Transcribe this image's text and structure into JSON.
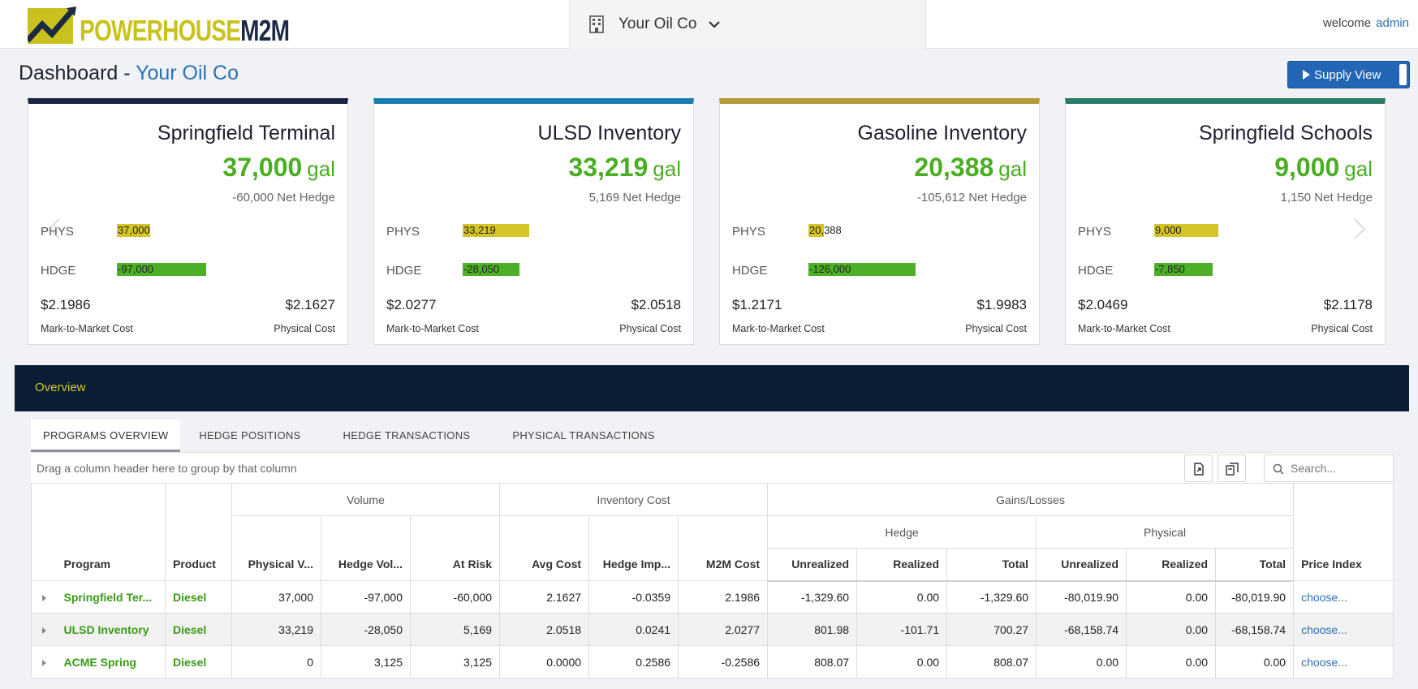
{
  "header": {
    "logo_part1": "POWERHOUSE",
    "logo_part2": "M2M",
    "company": "Your Oil Co",
    "welcome": "welcome",
    "user": "admin"
  },
  "dashboard": {
    "title": "Dashboard",
    "separator": " - ",
    "company": "Your Oil Co",
    "supply_view_label": "Supply View"
  },
  "cards": [
    {
      "title": "Springfield Terminal",
      "volume": "37,000",
      "unit": "gal",
      "net_hedge": "-60,000 Net Hedge",
      "phys_label": "PHYS",
      "phys_value": "37,000",
      "phys_fill": 0.17,
      "hdge_label": "HDGE",
      "hdge_value": "-97,000",
      "hdge_fill": 0.46,
      "m2m_cost": "$2.1986",
      "phys_cost": "$2.1627",
      "m2m_label": "Mark-to-Market Cost",
      "phys_cost_label": "Physical Cost",
      "accent": "#1b2440"
    },
    {
      "title": "ULSD Inventory",
      "volume": "33,219",
      "unit": "gal",
      "net_hedge": "5,169 Net Hedge",
      "phys_label": "PHYS",
      "phys_value": "33,219",
      "phys_fill": 0.34,
      "hdge_label": "HDGE",
      "hdge_value": "-28,050",
      "hdge_fill": 0.29,
      "m2m_cost": "$2.0277",
      "phys_cost": "$2.0518",
      "m2m_label": "Mark-to-Market Cost",
      "phys_cost_label": "Physical Cost",
      "accent": "#1a7fb0"
    },
    {
      "title": "Gasoline Inventory",
      "volume": "20,388",
      "unit": "gal",
      "net_hedge": "-105,612 Net Hedge",
      "phys_label": "PHYS",
      "phys_value": "20,388",
      "phys_fill": 0.08,
      "hdge_label": "HDGE",
      "hdge_value": "-126,000",
      "hdge_fill": 0.55,
      "m2m_cost": "$1.2171",
      "phys_cost": "$1.9983",
      "m2m_label": "Mark-to-Market Cost",
      "phys_cost_label": "Physical Cost",
      "accent": "#b59b37"
    },
    {
      "title": "Springfield Schools",
      "volume": "9,000",
      "unit": "gal",
      "net_hedge": "1,150 Net Hedge",
      "phys_label": "PHYS",
      "phys_value": "9,000",
      "phys_fill": 0.33,
      "hdge_label": "HDGE",
      "hdge_value": "-7,850",
      "hdge_fill": 0.3,
      "m2m_cost": "$2.0469",
      "phys_cost": "$2.1178",
      "m2m_label": "Mark-to-Market Cost",
      "phys_cost_label": "Physical Cost",
      "accent": "#2a7b6a"
    }
  ],
  "overview": {
    "title": "Overview",
    "tabs": [
      "PROGRAMS OVERVIEW",
      "HEDGE POSITIONS",
      "HEDGE TRANSACTIONS",
      "PHYSICAL TRANSACTIONS"
    ],
    "group_hint": "Drag a column header here to group by that column",
    "search_placeholder": "Search..."
  },
  "grid": {
    "groups": {
      "volume": "Volume",
      "inventory_cost": "Inventory Cost",
      "gains_losses": "Gains/Losses",
      "hedge": "Hedge",
      "physical": "Physical"
    },
    "columns": [
      "Program",
      "Product",
      "Physical V...",
      "Hedge Vol...",
      "At Risk",
      "Avg Cost",
      "Hedge Imp...",
      "M2M Cost",
      "Unrealized",
      "Realized",
      "Total",
      "Unrealized",
      "Realized",
      "Total",
      "Price Index"
    ],
    "rows": [
      [
        "Springfield Ter...",
        "Diesel",
        "37,000",
        "-97,000",
        "-60,000",
        "2.1627",
        "-0.0359",
        "2.1986",
        "-1,329.60",
        "0.00",
        "-1,329.60",
        "-80,019.90",
        "0.00",
        "-80,019.90",
        "choose..."
      ],
      [
        "ULSD Inventory",
        "Diesel",
        "33,219",
        "-28,050",
        "5,169",
        "2.0518",
        "0.0241",
        "2.0277",
        "801.98",
        "-101.71",
        "700.27",
        "-68,158.74",
        "0.00",
        "-68,158.74",
        "choose..."
      ],
      [
        "ACME Spring",
        "Diesel",
        "0",
        "3,125",
        "3,125",
        "0.0000",
        "0.2586",
        "-0.2586",
        "808.07",
        "0.00",
        "808.07",
        "0.00",
        "0.00",
        "0.00",
        "choose..."
      ]
    ]
  }
}
